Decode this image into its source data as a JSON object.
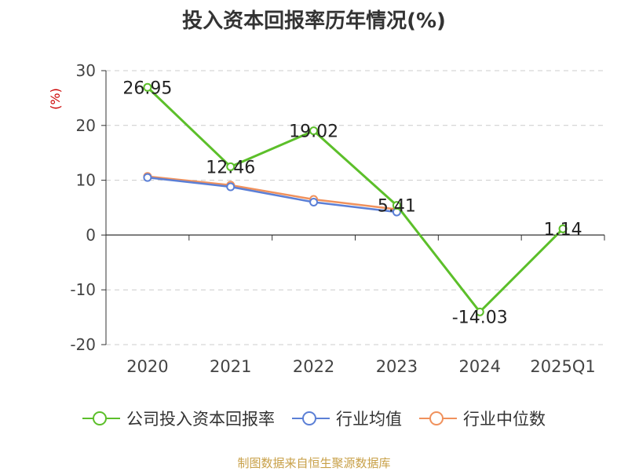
{
  "title": "投入资本回报率历年情况(%)",
  "source": "制图数据来自恒生聚源数据库",
  "colors": {
    "company": "#5cbf2a",
    "industry_avg": "#5b7fd6",
    "industry_median": "#f0915c",
    "axis": "#333333",
    "grid": "#cccccc",
    "unit": "#cc0000"
  },
  "chart_data": {
    "type": "line",
    "title": "投入资本回报率历年情况(%)",
    "ylabel": "(%)",
    "xlabel": "",
    "categories": [
      "2020",
      "2021",
      "2022",
      "2023",
      "2024",
      "2025Q1"
    ],
    "ylim": [
      -20,
      30
    ],
    "yticks": [
      30,
      20,
      10,
      0,
      -10,
      -20
    ],
    "grid": "horizontal dashed",
    "legend_position": "bottom",
    "series": [
      {
        "name": "公司投入资本回报率",
        "values": [
          26.95,
          12.46,
          19.02,
          5.41,
          -14.03,
          1.14
        ],
        "labels": [
          "26.95",
          "12.46",
          "19.02",
          "5.41",
          "-14.03",
          "1.14"
        ],
        "color": "#5cbf2a"
      },
      {
        "name": "行业均值",
        "values": [
          10.5,
          8.8,
          6.0,
          4.2,
          null,
          null
        ],
        "color": "#5b7fd6"
      },
      {
        "name": "行业中位数",
        "values": [
          10.7,
          9.1,
          6.5,
          4.7,
          null,
          null
        ],
        "color": "#f0915c"
      }
    ]
  }
}
